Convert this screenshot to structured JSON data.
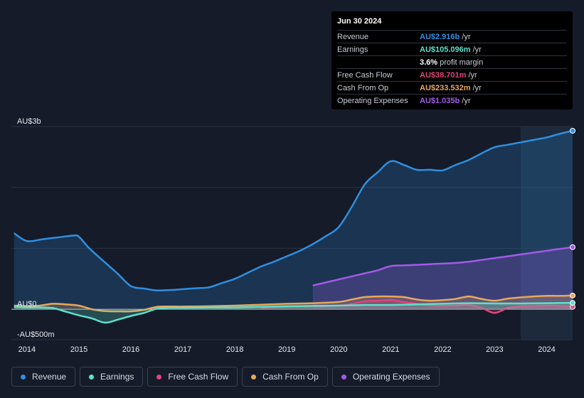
{
  "tooltip": {
    "date": "Jun 30 2024",
    "rows": [
      {
        "label": "Revenue",
        "value": "AU$2.916b",
        "unit": "/yr",
        "color": "#2f8fe0"
      },
      {
        "label": "Earnings",
        "value": "AU$105.096m",
        "unit": "/yr",
        "color": "#5ee0cc"
      },
      {
        "label": "",
        "value": "3.6%",
        "unit": "profit margin",
        "color": "#ffffff"
      },
      {
        "label": "Free Cash Flow",
        "value": "AU$38.701m",
        "unit": "/yr",
        "color": "#e0457b"
      },
      {
        "label": "Cash From Op",
        "value": "AU$233.532m",
        "unit": "/yr",
        "color": "#e8a75e"
      },
      {
        "label": "Operating Expenses",
        "value": "AU$1.035b",
        "unit": "/yr",
        "color": "#a35ae8"
      }
    ]
  },
  "legend": [
    {
      "label": "Revenue",
      "color": "#2f8fe0"
    },
    {
      "label": "Earnings",
      "color": "#5ee0cc"
    },
    {
      "label": "Free Cash Flow",
      "color": "#e0457b"
    },
    {
      "label": "Cash From Op",
      "color": "#e8a75e"
    },
    {
      "label": "Operating Expenses",
      "color": "#a35ae8"
    }
  ],
  "chart_data": {
    "type": "line",
    "title": "",
    "ylabel": "",
    "y_tick_labels": [
      "AU$3b",
      "AU$0",
      "-AU$500m"
    ],
    "y_ticks": [
      3000,
      0,
      -500
    ],
    "ylim": [
      -500,
      3000
    ],
    "xlim": [
      2013.7,
      2024.5
    ],
    "x_tick_labels": [
      "2014",
      "2015",
      "2016",
      "2017",
      "2018",
      "2019",
      "2020",
      "2021",
      "2022",
      "2023",
      "2024"
    ],
    "x_ticks": [
      2014,
      2015,
      2016,
      2017,
      2018,
      2019,
      2020,
      2021,
      2022,
      2023,
      2024
    ],
    "highlight_start": 2023.5,
    "series": [
      {
        "name": "Revenue",
        "color": "#2f8fe0",
        "fill": true,
        "x": [
          2013.75,
          2014.0,
          2014.3,
          2014.6,
          2014.9,
          2015.0,
          2015.2,
          2015.5,
          2015.75,
          2016.0,
          2016.25,
          2016.5,
          2016.75,
          2017.0,
          2017.25,
          2017.5,
          2017.75,
          2018.0,
          2018.25,
          2018.5,
          2018.75,
          2019.0,
          2019.25,
          2019.5,
          2019.75,
          2020.0,
          2020.25,
          2020.5,
          2020.75,
          2021.0,
          2021.25,
          2021.5,
          2021.75,
          2022.0,
          2022.25,
          2022.5,
          2022.75,
          2023.0,
          2023.25,
          2023.5,
          2023.75,
          2024.0,
          2024.25,
          2024.5
        ],
        "values": [
          1250,
          1120,
          1150,
          1180,
          1210,
          1190,
          1000,
          770,
          580,
          380,
          340,
          310,
          315,
          330,
          345,
          360,
          430,
          500,
          600,
          700,
          780,
          870,
          960,
          1070,
          1200,
          1350,
          1680,
          2050,
          2250,
          2430,
          2370,
          2290,
          2290,
          2280,
          2370,
          2450,
          2560,
          2660,
          2700,
          2740,
          2780,
          2820,
          2880,
          2930
        ]
      },
      {
        "name": "Operating Expenses",
        "color": "#a35ae8",
        "fill": true,
        "x": [
          2019.5,
          2019.75,
          2020.0,
          2020.25,
          2020.5,
          2020.75,
          2021.0,
          2021.25,
          2021.5,
          2021.75,
          2022.0,
          2022.25,
          2022.5,
          2022.75,
          2023.0,
          2023.25,
          2023.5,
          2023.75,
          2024.0,
          2024.25,
          2024.5
        ],
        "values": [
          390,
          440,
          490,
          540,
          590,
          640,
          710,
          720,
          730,
          740,
          750,
          760,
          780,
          810,
          840,
          870,
          900,
          930,
          960,
          990,
          1020
        ]
      },
      {
        "name": "Cash From Op",
        "color": "#e8a75e",
        "fill": true,
        "x": [
          2013.75,
          2014.0,
          2014.25,
          2014.5,
          2014.75,
          2015.0,
          2015.25,
          2015.5,
          2015.75,
          2016.0,
          2016.25,
          2016.5,
          2016.75,
          2017.0,
          2017.5,
          2018.0,
          2018.5,
          2019.0,
          2019.5,
          2020.0,
          2020.25,
          2020.5,
          2020.75,
          2021.0,
          2021.25,
          2021.5,
          2021.75,
          2022.0,
          2022.25,
          2022.5,
          2022.75,
          2023.0,
          2023.25,
          2023.5,
          2023.75,
          2024.0,
          2024.25,
          2024.5
        ],
        "values": [
          60,
          50,
          60,
          90,
          80,
          60,
          0,
          -30,
          -35,
          -35,
          -10,
          40,
          45,
          45,
          50,
          60,
          75,
          90,
          100,
          120,
          160,
          200,
          210,
          210,
          200,
          160,
          140,
          150,
          170,
          210,
          170,
          140,
          175,
          195,
          210,
          220,
          220,
          225
        ]
      },
      {
        "name": "Free Cash Flow",
        "color": "#e0457b",
        "fill": true,
        "x": [
          2018.5,
          2019.0,
          2019.5,
          2020.0,
          2020.25,
          2020.5,
          2020.75,
          2021.0,
          2021.25,
          2021.5,
          2021.75,
          2022.0,
          2022.25,
          2022.5,
          2022.75,
          2023.0,
          2023.25,
          2023.5,
          2023.75,
          2024.0,
          2024.25,
          2024.5
        ],
        "values": [
          30,
          40,
          45,
          60,
          90,
          130,
          140,
          150,
          120,
          90,
          60,
          55,
          60,
          70,
          20,
          -60,
          20,
          45,
          50,
          55,
          50,
          40
        ]
      },
      {
        "name": "Earnings",
        "color": "#5ee0cc",
        "fill": true,
        "x": [
          2013.75,
          2014.0,
          2014.25,
          2014.5,
          2014.75,
          2015.0,
          2015.25,
          2015.5,
          2015.75,
          2016.0,
          2016.25,
          2016.5,
          2016.75,
          2017.0,
          2017.5,
          2018.0,
          2018.5,
          2019.0,
          2019.5,
          2020.0,
          2020.5,
          2021.0,
          2021.5,
          2022.0,
          2022.5,
          2023.0,
          2023.5,
          2024.0,
          2024.5
        ],
        "values": [
          40,
          30,
          30,
          20,
          -40,
          -100,
          -150,
          -220,
          -170,
          -110,
          -60,
          10,
          25,
          25,
          30,
          30,
          40,
          50,
          55,
          60,
          70,
          70,
          80,
          90,
          100,
          95,
          95,
          100,
          105
        ]
      }
    ]
  }
}
